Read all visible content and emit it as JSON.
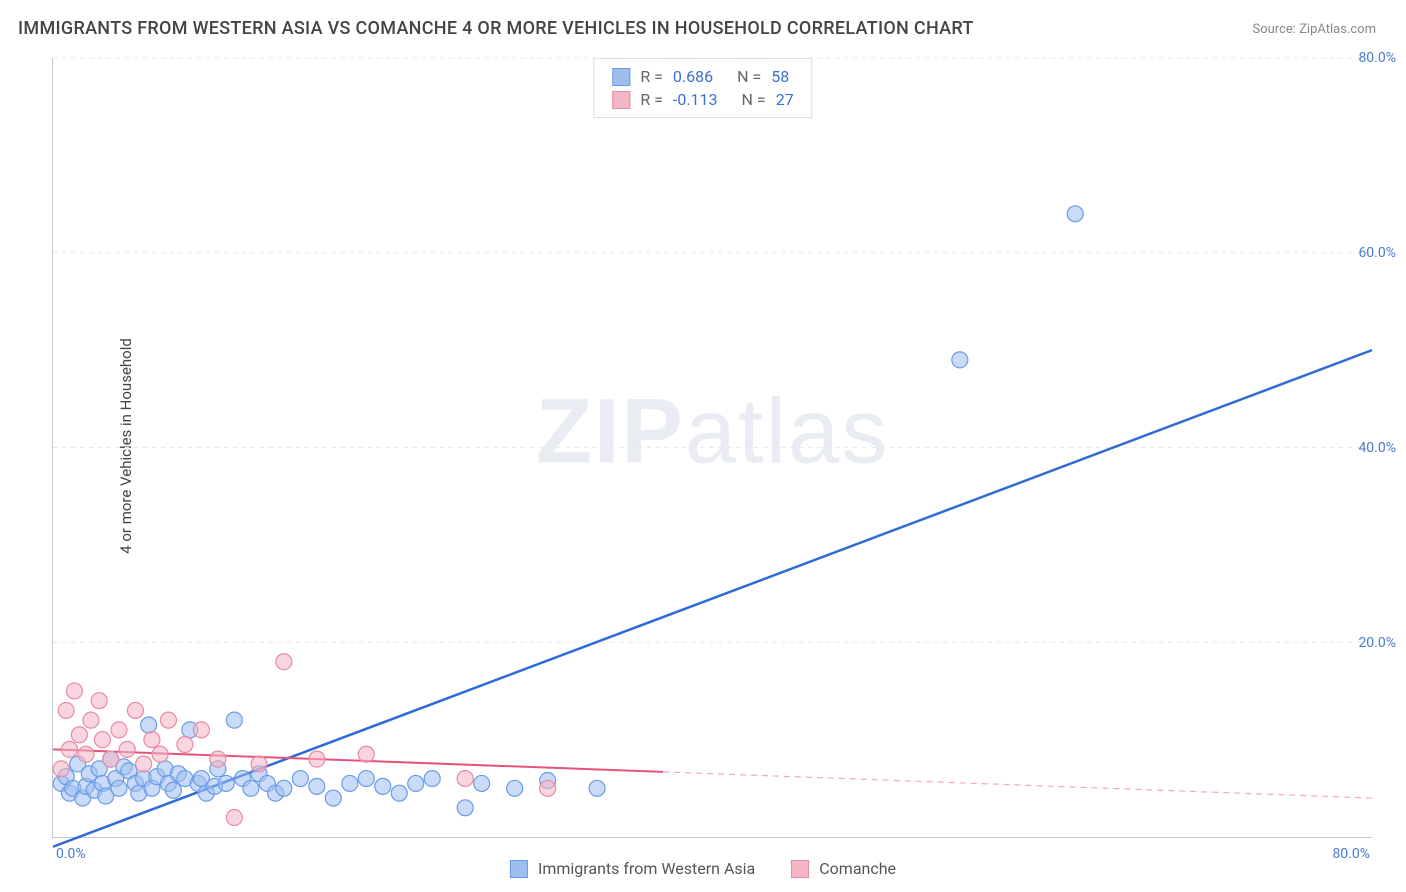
{
  "title": "IMMIGRANTS FROM WESTERN ASIA VS COMANCHE 4 OR MORE VEHICLES IN HOUSEHOLD CORRELATION CHART",
  "source": "Source: ZipAtlas.com",
  "ylabel": "4 or more Vehicles in Household",
  "watermark_zip": "ZIP",
  "watermark_atlas": "atlas",
  "chart": {
    "type": "scatter",
    "xlim": [
      0,
      80
    ],
    "ylim": [
      0,
      80
    ],
    "xtick_left": "0.0%",
    "xtick_right": "80.0%",
    "yticks": [
      {
        "v": 20,
        "label": "20.0%"
      },
      {
        "v": 40,
        "label": "40.0%"
      },
      {
        "v": 60,
        "label": "60.0%"
      },
      {
        "v": 80,
        "label": "80.0%"
      }
    ],
    "grid_color": "#e5e8ee",
    "axis_color": "#c0c9d6",
    "background_color": "#ffffff",
    "series": [
      {
        "name": "Immigrants from Western Asia",
        "color_fill": "#9fbef0",
        "color_stroke": "#6b9be8",
        "color_line": "#2e6bd6",
        "fill_opacity": 0.55,
        "marker_radius": 8,
        "R": "0.686",
        "N": "58",
        "trend": {
          "x1": 0,
          "y1": -1,
          "x2": 80,
          "y2": 50,
          "dash": "none"
        },
        "points": [
          [
            0.5,
            5.5
          ],
          [
            0.8,
            6.2
          ],
          [
            1.0,
            4.5
          ],
          [
            1.2,
            5.0
          ],
          [
            1.5,
            7.5
          ],
          [
            1.8,
            4.0
          ],
          [
            2.0,
            5.2
          ],
          [
            2.2,
            6.5
          ],
          [
            2.5,
            4.8
          ],
          [
            2.8,
            7.0
          ],
          [
            3.0,
            5.5
          ],
          [
            3.2,
            4.2
          ],
          [
            3.5,
            8.0
          ],
          [
            3.8,
            6.0
          ],
          [
            4.0,
            5.0
          ],
          [
            4.3,
            7.2
          ],
          [
            4.6,
            6.8
          ],
          [
            5.0,
            5.5
          ],
          [
            5.2,
            4.5
          ],
          [
            5.5,
            6.0
          ],
          [
            5.8,
            11.5
          ],
          [
            6.0,
            5.0
          ],
          [
            6.3,
            6.2
          ],
          [
            6.8,
            7.0
          ],
          [
            7.0,
            5.5
          ],
          [
            7.3,
            4.8
          ],
          [
            7.6,
            6.5
          ],
          [
            8.0,
            6.0
          ],
          [
            8.3,
            11.0
          ],
          [
            8.8,
            5.5
          ],
          [
            9.0,
            6.0
          ],
          [
            9.3,
            4.5
          ],
          [
            9.8,
            5.2
          ],
          [
            10.0,
            7.0
          ],
          [
            10.5,
            5.5
          ],
          [
            11.0,
            12.0
          ],
          [
            11.5,
            6.0
          ],
          [
            12.0,
            5.0
          ],
          [
            12.5,
            6.5
          ],
          [
            13.0,
            5.5
          ],
          [
            13.5,
            4.5
          ],
          [
            14.0,
            5.0
          ],
          [
            15.0,
            6.0
          ],
          [
            16.0,
            5.2
          ],
          [
            17.0,
            4.0
          ],
          [
            18.0,
            5.5
          ],
          [
            19.0,
            6.0
          ],
          [
            20.0,
            5.2
          ],
          [
            21.0,
            4.5
          ],
          [
            22.0,
            5.5
          ],
          [
            23.0,
            6.0
          ],
          [
            25.0,
            3.0
          ],
          [
            26.0,
            5.5
          ],
          [
            28.0,
            5.0
          ],
          [
            30.0,
            5.8
          ],
          [
            33.0,
            5.0
          ],
          [
            55.0,
            49.0
          ],
          [
            62.0,
            64.0
          ]
        ]
      },
      {
        "name": "Comanche",
        "color_fill": "#f4b5c5",
        "color_stroke": "#e88aa3",
        "color_line": "#e6537a",
        "fill_opacity": 0.55,
        "marker_radius": 8,
        "R": "-0.113",
        "N": "27",
        "trend": {
          "x1": 0,
          "y1": 9,
          "x2": 80,
          "y2": 4,
          "solid_until_x": 37
        },
        "points": [
          [
            0.5,
            7.0
          ],
          [
            0.8,
            13.0
          ],
          [
            1.0,
            9.0
          ],
          [
            1.3,
            15.0
          ],
          [
            1.6,
            10.5
          ],
          [
            2.0,
            8.5
          ],
          [
            2.3,
            12.0
          ],
          [
            2.8,
            14.0
          ],
          [
            3.0,
            10.0
          ],
          [
            3.5,
            8.0
          ],
          [
            4.0,
            11.0
          ],
          [
            4.5,
            9.0
          ],
          [
            5.0,
            13.0
          ],
          [
            5.5,
            7.5
          ],
          [
            6.0,
            10.0
          ],
          [
            6.5,
            8.5
          ],
          [
            7.0,
            12.0
          ],
          [
            8.0,
            9.5
          ],
          [
            9.0,
            11.0
          ],
          [
            10.0,
            8.0
          ],
          [
            11.0,
            2.0
          ],
          [
            12.5,
            7.5
          ],
          [
            14.0,
            18.0
          ],
          [
            16.0,
            8.0
          ],
          [
            19.0,
            8.5
          ],
          [
            25.0,
            6.0
          ],
          [
            30.0,
            5.0
          ]
        ]
      }
    ]
  },
  "legend_bottom": [
    {
      "label": "Immigrants from Western Asia",
      "fill": "#9fbef0",
      "stroke": "#6b9be8"
    },
    {
      "label": "Comanche",
      "fill": "#f4b5c5",
      "stroke": "#e88aa3"
    }
  ]
}
